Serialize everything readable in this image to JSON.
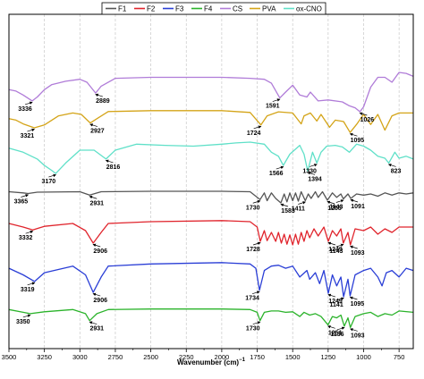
{
  "chart_data": {
    "type": "line",
    "xlabel": "Wavenumber (cm)",
    "xlabel_superscript": "−1",
    "x_reversed": true,
    "xlim": [
      3500,
      650
    ],
    "x_ticks": [
      3500,
      3250,
      3000,
      2750,
      2500,
      2250,
      2000,
      1750,
      1500,
      1250,
      1000,
      750
    ],
    "y_ticks_visible": false,
    "grid": "vertical-dashed",
    "legend_position": "top-center",
    "series": [
      {
        "name": "CS",
        "color": "#b07cd8",
        "values": [
          [
            3500,
            0.55
          ],
          [
            3450,
            0.58
          ],
          [
            3400,
            0.66
          ],
          [
            3336,
            0.78
          ],
          [
            3300,
            0.7
          ],
          [
            3250,
            0.55
          ],
          [
            3200,
            0.45
          ],
          [
            3100,
            0.38
          ],
          [
            3000,
            0.34
          ],
          [
            2950,
            0.4
          ],
          [
            2889,
            0.62
          ],
          [
            2850,
            0.48
          ],
          [
            2750,
            0.32
          ],
          [
            2500,
            0.3
          ],
          [
            2000,
            0.3
          ],
          [
            1800,
            0.32
          ],
          [
            1700,
            0.34
          ],
          [
            1650,
            0.42
          ],
          [
            1591,
            0.72
          ],
          [
            1550,
            0.6
          ],
          [
            1500,
            0.46
          ],
          [
            1450,
            0.66
          ],
          [
            1400,
            0.7
          ],
          [
            1375,
            0.6
          ],
          [
            1320,
            0.78
          ],
          [
            1250,
            0.76
          ],
          [
            1150,
            0.8
          ],
          [
            1100,
            0.88
          ],
          [
            1060,
            0.92
          ],
          [
            1026,
            1.0
          ],
          [
            1000,
            0.9
          ],
          [
            950,
            0.5
          ],
          [
            900,
            0.3
          ],
          [
            850,
            0.3
          ],
          [
            800,
            0.4
          ],
          [
            750,
            0.2
          ],
          [
            700,
            0.22
          ],
          [
            650,
            0.28
          ]
        ]
      },
      {
        "name": "PVA",
        "color": "#d4a418",
        "values": [
          [
            3500,
            0.4
          ],
          [
            3450,
            0.45
          ],
          [
            3400,
            0.58
          ],
          [
            3321,
            0.72
          ],
          [
            3250,
            0.62
          ],
          [
            3150,
            0.3
          ],
          [
            3050,
            0.2
          ],
          [
            2990,
            0.25
          ],
          [
            2927,
            0.55
          ],
          [
            2880,
            0.4
          ],
          [
            2800,
            0.15
          ],
          [
            2500,
            0.12
          ],
          [
            2000,
            0.12
          ],
          [
            1800,
            0.18
          ],
          [
            1724,
            0.62
          ],
          [
            1680,
            0.3
          ],
          [
            1600,
            0.16
          ],
          [
            1500,
            0.2
          ],
          [
            1440,
            0.58
          ],
          [
            1420,
            0.3
          ],
          [
            1375,
            0.2
          ],
          [
            1330,
            0.48
          ],
          [
            1300,
            0.25
          ],
          [
            1240,
            0.7
          ],
          [
            1200,
            0.45
          ],
          [
            1141,
            0.5
          ],
          [
            1095,
            0.88
          ],
          [
            1050,
            0.6
          ],
          [
            1000,
            0.25
          ],
          [
            950,
            0.6
          ],
          [
            900,
            0.25
          ],
          [
            850,
            0.8
          ],
          [
            800,
            0.3
          ],
          [
            750,
            0.2
          ],
          [
            650,
            0.2
          ]
        ]
      },
      {
        "name": "ox-CNO",
        "color": "#5fe0c8",
        "values": [
          [
            3500,
            0.35
          ],
          [
            3400,
            0.45
          ],
          [
            3300,
            0.62
          ],
          [
            3250,
            0.78
          ],
          [
            3200,
            0.9
          ],
          [
            3170,
            0.98
          ],
          [
            3100,
            0.72
          ],
          [
            3000,
            0.4
          ],
          [
            2900,
            0.4
          ],
          [
            2816,
            0.62
          ],
          [
            2750,
            0.4
          ],
          [
            2600,
            0.25
          ],
          [
            2400,
            0.28
          ],
          [
            2200,
            0.3
          ],
          [
            2000,
            0.25
          ],
          [
            1900,
            0.22
          ],
          [
            1800,
            0.2
          ],
          [
            1700,
            0.25
          ],
          [
            1650,
            0.45
          ],
          [
            1600,
            0.55
          ],
          [
            1566,
            0.78
          ],
          [
            1520,
            0.5
          ],
          [
            1450,
            0.28
          ],
          [
            1420,
            0.5
          ],
          [
            1394,
            0.92
          ],
          [
            1360,
            0.45
          ],
          [
            1330,
            0.72
          ],
          [
            1300,
            0.45
          ],
          [
            1260,
            0.3
          ],
          [
            1200,
            0.28
          ],
          [
            1150,
            0.32
          ],
          [
            1100,
            0.45
          ],
          [
            1050,
            0.25
          ],
          [
            1000,
            0.3
          ],
          [
            950,
            0.4
          ],
          [
            900,
            0.55
          ],
          [
            850,
            0.6
          ],
          [
            823,
            0.72
          ],
          [
            780,
            0.45
          ],
          [
            750,
            0.6
          ],
          [
            700,
            0.55
          ],
          [
            650,
            0.62
          ]
        ]
      },
      {
        "name": "F1",
        "color": "#555555",
        "values": [
          [
            3500,
            0.3
          ],
          [
            3400,
            0.35
          ],
          [
            3365,
            0.38
          ],
          [
            3300,
            0.32
          ],
          [
            3000,
            0.3
          ],
          [
            2931,
            0.45
          ],
          [
            2850,
            0.3
          ],
          [
            2500,
            0.28
          ],
          [
            2000,
            0.28
          ],
          [
            1800,
            0.3
          ],
          [
            1730,
            0.65
          ],
          [
            1700,
            0.35
          ],
          [
            1680,
            0.7
          ],
          [
            1650,
            0.35
          ],
          [
            1620,
            0.6
          ],
          [
            1583,
            0.8
          ],
          [
            1560,
            0.4
          ],
          [
            1540,
            0.75
          ],
          [
            1520,
            0.35
          ],
          [
            1500,
            0.7
          ],
          [
            1480,
            0.35
          ],
          [
            1460,
            0.72
          ],
          [
            1440,
            0.3
          ],
          [
            1411,
            0.7
          ],
          [
            1390,
            0.4
          ],
          [
            1370,
            0.6
          ],
          [
            1340,
            0.3
          ],
          [
            1320,
            0.55
          ],
          [
            1290,
            0.3
          ],
          [
            1255,
            0.68
          ],
          [
            1220,
            0.35
          ],
          [
            1190,
            0.55
          ],
          [
            1160,
            0.4
          ],
          [
            1143,
            0.62
          ],
          [
            1110,
            0.4
          ],
          [
            1091,
            0.6
          ],
          [
            1050,
            0.4
          ],
          [
            1000,
            0.45
          ],
          [
            950,
            0.4
          ],
          [
            900,
            0.5
          ],
          [
            850,
            0.35
          ],
          [
            800,
            0.45
          ],
          [
            750,
            0.35
          ],
          [
            700,
            0.4
          ],
          [
            650,
            0.35
          ]
        ]
      },
      {
        "name": "F2",
        "color": "#e0242c",
        "values": [
          [
            3500,
            0.3
          ],
          [
            3400,
            0.4
          ],
          [
            3332,
            0.48
          ],
          [
            3250,
            0.38
          ],
          [
            3050,
            0.3
          ],
          [
            2960,
            0.5
          ],
          [
            2906,
            0.85
          ],
          [
            2850,
            0.55
          ],
          [
            2800,
            0.3
          ],
          [
            2500,
            0.25
          ],
          [
            2000,
            0.22
          ],
          [
            1800,
            0.25
          ],
          [
            1750,
            0.4
          ],
          [
            1728,
            0.8
          ],
          [
            1700,
            0.5
          ],
          [
            1680,
            0.78
          ],
          [
            1650,
            0.55
          ],
          [
            1620,
            0.8
          ],
          [
            1600,
            0.55
          ],
          [
            1580,
            0.85
          ],
          [
            1560,
            0.6
          ],
          [
            1540,
            0.88
          ],
          [
            1520,
            0.62
          ],
          [
            1500,
            0.9
          ],
          [
            1480,
            0.6
          ],
          [
            1460,
            0.88
          ],
          [
            1440,
            0.55
          ],
          [
            1420,
            0.8
          ],
          [
            1400,
            0.5
          ],
          [
            1380,
            0.7
          ],
          [
            1350,
            0.45
          ],
          [
            1320,
            0.65
          ],
          [
            1280,
            0.4
          ],
          [
            1249,
            0.8
          ],
          [
            1220,
            0.5
          ],
          [
            1190,
            0.65
          ],
          [
            1160,
            0.45
          ],
          [
            1143,
            0.85
          ],
          [
            1110,
            0.55
          ],
          [
            1093,
            0.9
          ],
          [
            1060,
            0.45
          ],
          [
            1000,
            0.5
          ],
          [
            950,
            0.4
          ],
          [
            900,
            0.6
          ],
          [
            850,
            0.45
          ],
          [
            800,
            0.55
          ],
          [
            750,
            0.4
          ],
          [
            650,
            0.4
          ]
        ]
      },
      {
        "name": "F3",
        "color": "#2a3ed6",
        "values": [
          [
            3500,
            0.35
          ],
          [
            3400,
            0.5
          ],
          [
            3319,
            0.65
          ],
          [
            3250,
            0.45
          ],
          [
            3050,
            0.3
          ],
          [
            2960,
            0.5
          ],
          [
            2906,
            0.9
          ],
          [
            2850,
            0.55
          ],
          [
            2800,
            0.3
          ],
          [
            2500,
            0.25
          ],
          [
            2000,
            0.22
          ],
          [
            1800,
            0.25
          ],
          [
            1760,
            0.35
          ],
          [
            1734,
            0.85
          ],
          [
            1700,
            0.4
          ],
          [
            1650,
            0.3
          ],
          [
            1600,
            0.28
          ],
          [
            1550,
            0.35
          ],
          [
            1500,
            0.3
          ],
          [
            1450,
            0.55
          ],
          [
            1400,
            0.4
          ],
          [
            1380,
            0.6
          ],
          [
            1340,
            0.45
          ],
          [
            1310,
            0.7
          ],
          [
            1280,
            0.4
          ],
          [
            1249,
            0.92
          ],
          [
            1220,
            0.5
          ],
          [
            1190,
            0.75
          ],
          [
            1160,
            0.55
          ],
          [
            1141,
            1.0
          ],
          [
            1110,
            0.6
          ],
          [
            1095,
            0.98
          ],
          [
            1060,
            0.5
          ],
          [
            1000,
            0.4
          ],
          [
            950,
            0.35
          ],
          [
            900,
            0.55
          ],
          [
            870,
            0.75
          ],
          [
            840,
            0.45
          ],
          [
            800,
            0.4
          ],
          [
            750,
            0.55
          ],
          [
            700,
            0.35
          ],
          [
            650,
            0.4
          ]
        ]
      },
      {
        "name": "F4",
        "color": "#2bb32b",
        "values": [
          [
            3500,
            0.3
          ],
          [
            3400,
            0.4
          ],
          [
            3350,
            0.45
          ],
          [
            3250,
            0.38
          ],
          [
            3050,
            0.3
          ],
          [
            2960,
            0.45
          ],
          [
            2931,
            0.7
          ],
          [
            2880,
            0.45
          ],
          [
            2800,
            0.3
          ],
          [
            2500,
            0.28
          ],
          [
            2000,
            0.28
          ],
          [
            1800,
            0.3
          ],
          [
            1750,
            0.4
          ],
          [
            1730,
            0.7
          ],
          [
            1700,
            0.4
          ],
          [
            1650,
            0.35
          ],
          [
            1600,
            0.35
          ],
          [
            1550,
            0.4
          ],
          [
            1500,
            0.38
          ],
          [
            1450,
            0.55
          ],
          [
            1420,
            0.4
          ],
          [
            1380,
            0.5
          ],
          [
            1340,
            0.45
          ],
          [
            1300,
            0.55
          ],
          [
            1251,
            0.85
          ],
          [
            1220,
            0.55
          ],
          [
            1190,
            0.6
          ],
          [
            1160,
            0.5
          ],
          [
            1136,
            0.9
          ],
          [
            1110,
            0.6
          ],
          [
            1093,
            0.95
          ],
          [
            1060,
            0.55
          ],
          [
            1000,
            0.45
          ],
          [
            950,
            0.4
          ],
          [
            900,
            0.55
          ],
          [
            850,
            0.45
          ],
          [
            800,
            0.5
          ],
          [
            750,
            0.35
          ],
          [
            650,
            0.4
          ]
        ]
      }
    ],
    "annotations": [
      {
        "series": "CS",
        "labels": [
          "3336",
          "2889",
          "1591",
          "1026"
        ]
      },
      {
        "series": "PVA",
        "labels": [
          "3321",
          "2927",
          "1724",
          "1095"
        ]
      },
      {
        "series": "ox-CNO",
        "labels": [
          "3170",
          "2816",
          "1566",
          "1394",
          "1330",
          "823"
        ]
      },
      {
        "series": "F1",
        "labels": [
          "3365",
          "2931",
          "1730",
          "1583",
          "1411",
          "1255",
          "1143",
          "1091"
        ]
      },
      {
        "series": "F2",
        "labels": [
          "3332",
          "2906",
          "1728",
          "1249",
          "1143",
          "1093"
        ]
      },
      {
        "series": "F3",
        "labels": [
          "3319",
          "2906",
          "1734",
          "1249",
          "1141",
          "1095"
        ]
      },
      {
        "series": "F4",
        "labels": [
          "3350",
          "2931",
          "1730",
          "1251",
          "1136",
          "1093"
        ]
      }
    ],
    "legend_order": [
      "F1",
      "F2",
      "F3",
      "F4",
      "CS",
      "PVA",
      "ox-CNO"
    ]
  }
}
